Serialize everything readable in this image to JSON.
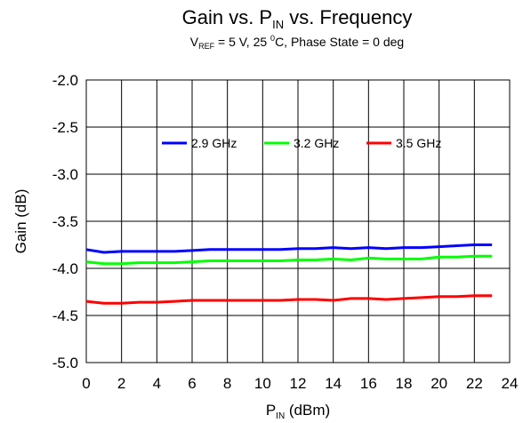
{
  "chart_data": {
    "type": "line",
    "title": {
      "pre": "Gain vs. P",
      "sub": "IN",
      "post": " vs. Frequency"
    },
    "subtitle": {
      "v": "V",
      "v_sub": "REF",
      "mid": " = 5 V, 25 ",
      "deg_sup": "0",
      "post": "C, Phase State = 0 deg"
    },
    "xlabel": {
      "pre": "P",
      "sub": "IN",
      "post": " (dBm)"
    },
    "ylabel": "Gain (dB)",
    "xlim": [
      0,
      24
    ],
    "ylim": [
      -5.0,
      -2.0
    ],
    "x_ticks": [
      0,
      2,
      4,
      6,
      8,
      10,
      12,
      14,
      16,
      18,
      20,
      22,
      24
    ],
    "y_ticks": [
      -5.0,
      -4.5,
      -4.0,
      -3.5,
      -3.0,
      -2.5,
      -2.0
    ],
    "y_tick_labels": [
      "-5.0",
      "-4.5",
      "-4.0",
      "-3.5",
      "-3.0",
      "-2.5",
      "-2.0"
    ],
    "grid": true,
    "legend_position": "upper-inside",
    "x": [
      0,
      1,
      2,
      3,
      4,
      5,
      6,
      7,
      8,
      9,
      10,
      11,
      12,
      13,
      14,
      15,
      16,
      17,
      18,
      19,
      20,
      21,
      22,
      23
    ],
    "series": [
      {
        "name": "2.9 GHz",
        "color": "#0000ff",
        "values": [
          -3.8,
          -3.83,
          -3.82,
          -3.82,
          -3.82,
          -3.82,
          -3.81,
          -3.8,
          -3.8,
          -3.8,
          -3.8,
          -3.8,
          -3.79,
          -3.79,
          -3.78,
          -3.79,
          -3.78,
          -3.79,
          -3.78,
          -3.78,
          -3.77,
          -3.76,
          -3.75,
          -3.75
        ]
      },
      {
        "name": "3.2 GHz",
        "color": "#00ff00",
        "values": [
          -3.93,
          -3.95,
          -3.95,
          -3.94,
          -3.94,
          -3.94,
          -3.93,
          -3.92,
          -3.92,
          -3.92,
          -3.92,
          -3.92,
          -3.91,
          -3.91,
          -3.9,
          -3.91,
          -3.89,
          -3.9,
          -3.9,
          -3.9,
          -3.88,
          -3.88,
          -3.87,
          -3.87
        ]
      },
      {
        "name": "3.5 GHz",
        "color": "#ff0000",
        "values": [
          -4.35,
          -4.37,
          -4.37,
          -4.36,
          -4.36,
          -4.35,
          -4.34,
          -4.34,
          -4.34,
          -4.34,
          -4.34,
          -4.34,
          -4.33,
          -4.33,
          -4.34,
          -4.32,
          -4.32,
          -4.33,
          -4.32,
          -4.31,
          -4.3,
          -4.3,
          -4.29,
          -4.29
        ]
      }
    ]
  }
}
